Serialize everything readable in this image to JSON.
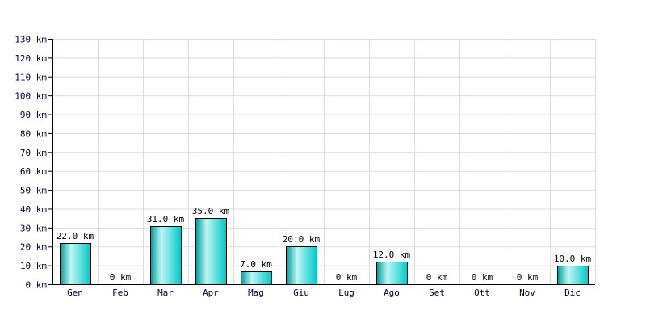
{
  "chart_data": {
    "type": "bar",
    "categories": [
      "Gen",
      "Feb",
      "Mar",
      "Apr",
      "Mag",
      "Giu",
      "Lug",
      "Ago",
      "Set",
      "Ott",
      "Nov",
      "Dic"
    ],
    "values": [
      22,
      0,
      31,
      35,
      7,
      20,
      0,
      12,
      0,
      0,
      0,
      10
    ],
    "data_labels": [
      "22.0 km",
      "0 km",
      "31.0 km",
      "35.0 km",
      "7.0 km",
      "20.0 km",
      "0 km",
      "12.0 km",
      "0 km",
      "0 km",
      "0 km",
      "10.0 km"
    ],
    "y_ticks": [
      "0 km",
      "10 km",
      "20 km",
      "30 km",
      "40 km",
      "50 km",
      "60 km",
      "70 km",
      "80 km",
      "90 km",
      "100 km",
      "110 km",
      "120 km",
      "130 km"
    ],
    "title": "",
    "xlabel": "",
    "ylabel": "",
    "ylim": [
      0,
      130
    ],
    "y_step": 10,
    "grid": true,
    "bar_color": "#00c8c8",
    "bar_highlight": "#bff5f5",
    "bar_shadow": "#009a9a"
  }
}
